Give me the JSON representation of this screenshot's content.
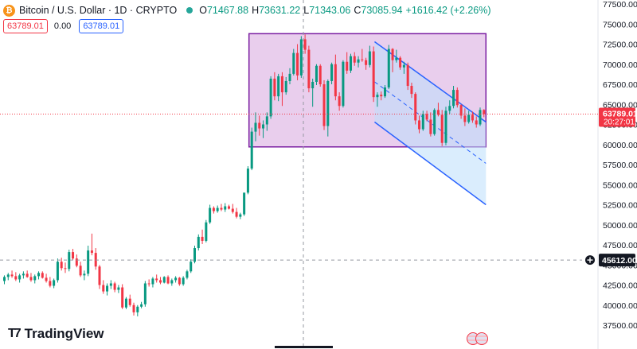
{
  "symbol": {
    "name": "Bitcoin / U.S. Dollar · 1D · CRYPTO",
    "open_label": "O",
    "open": "71467.88",
    "high_label": "H",
    "high": "73631.22",
    "low_label": "L",
    "low": "71343.06",
    "close_label": "C",
    "close": "73085.94",
    "change": "+1616.42 (+2.26%)"
  },
  "price_boxes": {
    "bid": "63789.01",
    "spread": "0.00",
    "ask": "63789.01"
  },
  "branding": {
    "logo_text": "TradingView"
  },
  "colors": {
    "up": "#089981",
    "down": "#f23645",
    "rect_fill": "#e1bee7",
    "rect_border": "#7b1fa2",
    "channel_fill": "#bbdefb",
    "channel_line": "#2962ff"
  },
  "chart_data": {
    "type": "candlestick",
    "y_axis": {
      "position": "right",
      "min": 37500,
      "max": 77500,
      "ticks": [
        37500,
        40000,
        42500,
        45000,
        47500,
        50000,
        52500,
        55000,
        57500,
        60000,
        62500,
        65000,
        67500,
        70000,
        72500,
        75000,
        77500
      ],
      "tick_labels": [
        "37500.00",
        "40000.00",
        "42500.00",
        "45000.00",
        "47500.00",
        "50000.00",
        "52500.00",
        "55000.00",
        "57500.00",
        "60000.00",
        "62500.00",
        "65000.00",
        "67500.00",
        "70000.00",
        "72500.00",
        "75000.00",
        "77500.00"
      ]
    },
    "current_price": {
      "value": 63789.01,
      "label": "63789.01",
      "countdown": "20:27:01"
    },
    "crosshair": {
      "price": 45612.0,
      "label": "45612.00"
    },
    "candles": [
      [
        43000,
        43700,
        42600,
        43500
      ],
      [
        43500,
        44000,
        43100,
        43800
      ],
      [
        43800,
        44300,
        43400,
        43600
      ],
      [
        43600,
        44100,
        43000,
        43200
      ],
      [
        43200,
        43900,
        42800,
        43700
      ],
      [
        43700,
        44200,
        43300,
        43900
      ],
      [
        43900,
        44300,
        43400,
        43500
      ],
      [
        43500,
        44000,
        42900,
        43100
      ],
      [
        43100,
        43800,
        42700,
        43600
      ],
      [
        43600,
        44200,
        43200,
        44000
      ],
      [
        44000,
        44200,
        43300,
        43400
      ],
      [
        43400,
        43900,
        42800,
        43000
      ],
      [
        43000,
        43500,
        42200,
        42400
      ],
      [
        42400,
        43300,
        42100,
        43100
      ],
      [
        43100,
        45800,
        42800,
        45400
      ],
      [
        45400,
        45900,
        44300,
        44600
      ],
      [
        44600,
        45300,
        44000,
        44500
      ],
      [
        44500,
        46900,
        44200,
        46600
      ],
      [
        46600,
        47000,
        45600,
        45800
      ],
      [
        45800,
        46300,
        44700,
        44900
      ],
      [
        44900,
        45400,
        43500,
        43700
      ],
      [
        43700,
        44300,
        43100,
        43900
      ],
      [
        43900,
        47400,
        43600,
        46800
      ],
      [
        46800,
        48900,
        46200,
        46500
      ],
      [
        46500,
        47100,
        44400,
        44800
      ],
      [
        44800,
        45000,
        42000,
        42500
      ],
      [
        42500,
        43100,
        41400,
        41700
      ],
      [
        41700,
        42700,
        41200,
        42400
      ],
      [
        42400,
        43100,
        42000,
        42700
      ],
      [
        42700,
        42900,
        41600,
        41900
      ],
      [
        41900,
        42500,
        41500,
        42200
      ],
      [
        42200,
        42600,
        39500,
        39700
      ],
      [
        39700,
        41000,
        39500,
        40800
      ],
      [
        40800,
        41300,
        39800,
        40000
      ],
      [
        40000,
        40300,
        38700,
        39100
      ],
      [
        39100,
        40000,
        38600,
        39800
      ],
      [
        39800,
        40400,
        39600,
        40100
      ],
      [
        40100,
        43000,
        39800,
        42700
      ],
      [
        42700,
        43200,
        42300,
        42600
      ],
      [
        42600,
        43500,
        42200,
        43300
      ],
      [
        43300,
        43800,
        42800,
        43100
      ],
      [
        43100,
        43500,
        42600,
        42800
      ],
      [
        42800,
        43600,
        42700,
        43500
      ],
      [
        43500,
        43700,
        42600,
        42700
      ],
      [
        42700,
        43300,
        42400,
        43100
      ],
      [
        43100,
        43600,
        42800,
        43400
      ],
      [
        43400,
        43500,
        42400,
        42600
      ],
      [
        42600,
        43600,
        42400,
        43400
      ],
      [
        43400,
        44400,
        43200,
        44200
      ],
      [
        44200,
        45700,
        44000,
        45400
      ],
      [
        45400,
        47400,
        45200,
        47100
      ],
      [
        47100,
        48800,
        46800,
        48500
      ],
      [
        48500,
        49400,
        47600,
        48000
      ],
      [
        48000,
        50600,
        47800,
        50300
      ],
      [
        50300,
        52500,
        50100,
        52100
      ],
      [
        52100,
        52300,
        51400,
        51700
      ],
      [
        51700,
        52400,
        51500,
        52100
      ],
      [
        52100,
        52600,
        51700,
        51900
      ],
      [
        51900,
        52700,
        51600,
        52300
      ],
      [
        52300,
        52500,
        51900,
        52000
      ],
      [
        52000,
        52600,
        51400,
        51600
      ],
      [
        51600,
        52100,
        50800,
        51000
      ],
      [
        51000,
        51500,
        50700,
        51300
      ],
      [
        51300,
        54000,
        51100,
        54000
      ],
      [
        54000,
        57300,
        53800,
        57000
      ],
      [
        57000,
        62100,
        56800,
        61600
      ],
      [
        61600,
        64000,
        60400,
        62700
      ],
      [
        62700,
        63600,
        61100,
        62000
      ],
      [
        62000,
        63000,
        60800,
        62500
      ],
      [
        62500,
        64000,
        61700,
        63500
      ],
      [
        63500,
        68500,
        63200,
        68200
      ],
      [
        68200,
        69000,
        65500,
        66000
      ],
      [
        66000,
        68800,
        65400,
        68500
      ],
      [
        68500,
        69000,
        64800,
        66500
      ],
      [
        66500,
        68400,
        66200,
        67900
      ],
      [
        67900,
        69500,
        67500,
        68800
      ],
      [
        68800,
        71900,
        68600,
        71400
      ],
      [
        71400,
        72500,
        68000,
        68600
      ],
      [
        68600,
        73500,
        68300,
        73100
      ],
      [
        73100,
        73700,
        71300,
        71800
      ],
      [
        71800,
        72300,
        66500,
        67000
      ],
      [
        67000,
        68200,
        64700,
        67800
      ],
      [
        67800,
        70000,
        67400,
        69800
      ],
      [
        69800,
        70000,
        67200,
        67500
      ],
      [
        67500,
        68000,
        61800,
        62300
      ],
      [
        62300,
        68100,
        61000,
        67900
      ],
      [
        67900,
        70200,
        67500,
        70000
      ],
      [
        70000,
        71200,
        65500,
        66000
      ],
      [
        66000,
        66500,
        64200,
        64800
      ],
      [
        64800,
        70500,
        64600,
        70300
      ],
      [
        70300,
        71500,
        68800,
        69200
      ],
      [
        69200,
        71300,
        68900,
        71000
      ],
      [
        71000,
        71500,
        69800,
        70200
      ],
      [
        70200,
        71000,
        69600,
        70600
      ],
      [
        70600,
        71900,
        70300,
        70500
      ],
      [
        70500,
        70800,
        69300,
        69900
      ],
      [
        69900,
        72300,
        69600,
        71600
      ],
      [
        71600,
        72200,
        65300,
        65900
      ],
      [
        65900,
        66500,
        64700,
        66200
      ],
      [
        66200,
        66600,
        65500,
        66000
      ],
      [
        66000,
        67400,
        65800,
        67100
      ],
      [
        67100,
        72400,
        66900,
        71900
      ],
      [
        71900,
        72000,
        69000,
        70500
      ],
      [
        70500,
        71800,
        70200,
        70800
      ],
      [
        70800,
        71000,
        69300,
        69600
      ],
      [
        69600,
        70300,
        68800,
        69900
      ],
      [
        69900,
        70200,
        66800,
        67300
      ],
      [
        67300,
        67700,
        65800,
        66300
      ],
      [
        66300,
        66500,
        62500,
        63000
      ],
      [
        63000,
        63600,
        61400,
        61900
      ],
      [
        61900,
        64200,
        61700,
        63800
      ],
      [
        63800,
        64200,
        62900,
        63100
      ],
      [
        63100,
        64000,
        61000,
        61300
      ],
      [
        61300,
        64500,
        61100,
        64300
      ],
      [
        64300,
        65200,
        63500,
        63700
      ],
      [
        63700,
        64300,
        59800,
        60200
      ],
      [
        60200,
        64700,
        59900,
        64200
      ],
      [
        64200,
        65500,
        63800,
        64800
      ],
      [
        64800,
        67300,
        64500,
        66800
      ],
      [
        66800,
        67100,
        64600,
        64900
      ],
      [
        64900,
        65000,
        63200,
        63600
      ],
      [
        63600,
        64500,
        62300,
        62800
      ],
      [
        62800,
        64200,
        62600,
        63700
      ],
      [
        63700,
        64100,
        62700,
        63000
      ],
      [
        63000,
        63500,
        62100,
        62500
      ],
      [
        62500,
        64600,
        62300,
        64300
      ],
      [
        64300,
        64400,
        63400,
        63789
      ]
    ],
    "annotations": [
      {
        "type": "rectangle",
        "price_top": 73800,
        "price_bottom": 59700,
        "candle_from": 65,
        "candle_to": 126
      },
      {
        "type": "parallel_channel",
        "candle_from": 98,
        "candle_to": 126,
        "upper": [
          72800,
          62800
        ],
        "lower": [
          62800,
          52500
        ]
      }
    ]
  }
}
